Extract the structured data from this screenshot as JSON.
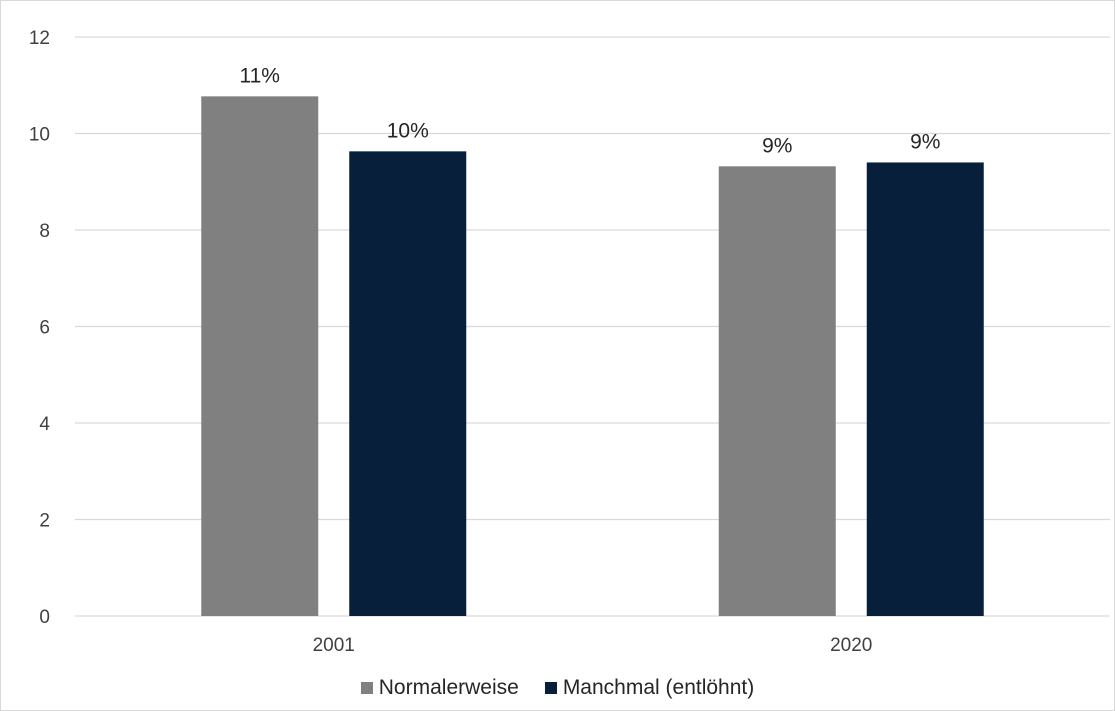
{
  "chart_data": {
    "type": "bar",
    "categories": [
      "2001",
      "2020"
    ],
    "series": [
      {
        "name": "Normalerweise",
        "values": [
          10.77,
          9.32
        ],
        "labels": [
          "11%",
          "9%"
        ],
        "color": "#808080"
      },
      {
        "name": "Manchmal (entlöhnt)",
        "values": [
          9.63,
          9.4
        ],
        "labels": [
          "10%",
          "9%"
        ],
        "color": "#081f3c"
      }
    ],
    "yticks": [
      "0",
      "2",
      "4",
      "6",
      "8",
      "10",
      "12"
    ],
    "ylim": [
      0,
      12
    ],
    "grid": true,
    "legend_position": "bottom",
    "title": "",
    "xlabel": "",
    "ylabel": ""
  }
}
